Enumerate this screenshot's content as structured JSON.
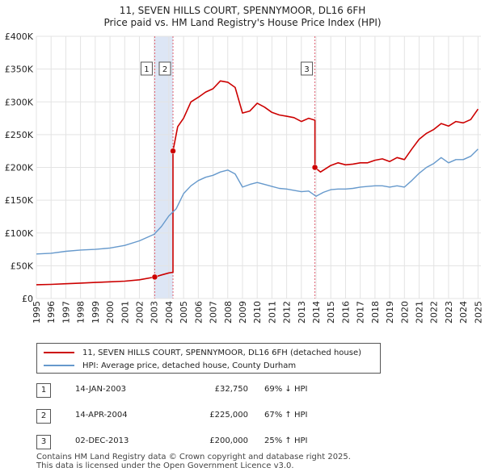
{
  "header": {
    "title_line1": "11, SEVEN HILLS COURT, SPENNYMOOR, DL16 6FH",
    "title_line2": "Price paid vs. HM Land Registry's House Price Index (HPI)"
  },
  "colors": {
    "property": "#cc0000",
    "hpi": "#6699cc",
    "highlight": "#dde6f5",
    "vline": "#e06070"
  },
  "chart_data": {
    "type": "line",
    "title": "11, SEVEN HILLS COURT, SPENNYMOOR, DL16 6FH — Price paid vs. HM Land Registry's House Price Index (HPI)",
    "xlim": [
      1995,
      2025.2
    ],
    "ylim": [
      0,
      400000
    ],
    "x_ticks": [
      "1995",
      "1996",
      "1997",
      "1998",
      "1999",
      "2000",
      "2001",
      "2002",
      "2003",
      "2004",
      "2005",
      "2006",
      "2007",
      "2008",
      "2009",
      "2010",
      "2011",
      "2012",
      "2013",
      "2014",
      "2015",
      "2016",
      "2017",
      "2018",
      "2019",
      "2020",
      "2021",
      "2022",
      "2023",
      "2024",
      "2025"
    ],
    "y_ticks": [
      {
        "value": 0,
        "label": "£0"
      },
      {
        "value": 50000,
        "label": "£50K"
      },
      {
        "value": 100000,
        "label": "£100K"
      },
      {
        "value": 150000,
        "label": "£150K"
      },
      {
        "value": 200000,
        "label": "£200K"
      },
      {
        "value": 250000,
        "label": "£250K"
      },
      {
        "value": 300000,
        "label": "£300K"
      },
      {
        "value": 350000,
        "label": "£350K"
      },
      {
        "value": 400000,
        "label": "£400K"
      }
    ],
    "series": [
      {
        "name": "11, SEVEN HILLS COURT, SPENNYMOOR, DL16 6FH (detached house)",
        "color": "#cc0000",
        "points": [
          [
            1995,
            21000
          ],
          [
            1996,
            21500
          ],
          [
            1997,
            22500
          ],
          [
            1998,
            23500
          ],
          [
            1999,
            24500
          ],
          [
            2000,
            25500
          ],
          [
            2001,
            26500
          ],
          [
            2002,
            28500
          ],
          [
            2003.04,
            32750
          ],
          [
            2003.5,
            36000
          ],
          [
            2004.0,
            39000
          ],
          [
            2004.28,
            40000
          ],
          [
            2004.28,
            225000
          ],
          [
            2004.6,
            262000
          ],
          [
            2005,
            275000
          ],
          [
            2005.5,
            300000
          ],
          [
            2006,
            307000
          ],
          [
            2006.5,
            315000
          ],
          [
            2007,
            320000
          ],
          [
            2007.5,
            332000
          ],
          [
            2008,
            330000
          ],
          [
            2008.5,
            322000
          ],
          [
            2009,
            283000
          ],
          [
            2009.5,
            286000
          ],
          [
            2010,
            298000
          ],
          [
            2010.5,
            292000
          ],
          [
            2011,
            284000
          ],
          [
            2011.5,
            280000
          ],
          [
            2012,
            278000
          ],
          [
            2012.5,
            276000
          ],
          [
            2013,
            270000
          ],
          [
            2013.5,
            275000
          ],
          [
            2013.92,
            272000
          ],
          [
            2013.92,
            200000
          ],
          [
            2014.3,
            193000
          ],
          [
            2015,
            203000
          ],
          [
            2015.5,
            207000
          ],
          [
            2016,
            204000
          ],
          [
            2016.5,
            205000
          ],
          [
            2017,
            207000
          ],
          [
            2017.5,
            207000
          ],
          [
            2018,
            211000
          ],
          [
            2018.5,
            213000
          ],
          [
            2019,
            209000
          ],
          [
            2019.5,
            215000
          ],
          [
            2020,
            212000
          ],
          [
            2020.5,
            228000
          ],
          [
            2021,
            243000
          ],
          [
            2021.5,
            252000
          ],
          [
            2022,
            258000
          ],
          [
            2022.5,
            267000
          ],
          [
            2023,
            263000
          ],
          [
            2023.5,
            270000
          ],
          [
            2024,
            268000
          ],
          [
            2024.5,
            273000
          ],
          [
            2025,
            289000
          ]
        ]
      },
      {
        "name": "HPI: Average price, detached house, County Durham",
        "color": "#6699cc",
        "points": [
          [
            1995,
            68000
          ],
          [
            1996,
            69000
          ],
          [
            1997,
            72000
          ],
          [
            1998,
            74000
          ],
          [
            1999,
            75000
          ],
          [
            2000,
            77000
          ],
          [
            2001,
            81000
          ],
          [
            2002,
            88000
          ],
          [
            2003,
            98000
          ],
          [
            2003.5,
            110000
          ],
          [
            2004,
            126000
          ],
          [
            2004.5,
            137000
          ],
          [
            2005,
            160000
          ],
          [
            2005.5,
            172000
          ],
          [
            2006,
            180000
          ],
          [
            2006.5,
            185000
          ],
          [
            2007,
            188000
          ],
          [
            2007.5,
            193000
          ],
          [
            2008,
            196000
          ],
          [
            2008.5,
            190000
          ],
          [
            2009,
            170000
          ],
          [
            2009.5,
            174000
          ],
          [
            2010,
            177000
          ],
          [
            2010.5,
            174000
          ],
          [
            2011,
            171000
          ],
          [
            2011.5,
            168000
          ],
          [
            2012,
            167000
          ],
          [
            2012.5,
            165000
          ],
          [
            2013,
            163000
          ],
          [
            2013.5,
            164000
          ],
          [
            2014,
            156000
          ],
          [
            2014.5,
            162000
          ],
          [
            2015,
            166000
          ],
          [
            2015.5,
            167000
          ],
          [
            2016,
            167000
          ],
          [
            2016.5,
            168000
          ],
          [
            2017,
            170000
          ],
          [
            2017.5,
            171000
          ],
          [
            2018,
            172000
          ],
          [
            2018.5,
            172000
          ],
          [
            2019,
            170000
          ],
          [
            2019.5,
            172000
          ],
          [
            2020,
            170000
          ],
          [
            2020.5,
            180000
          ],
          [
            2021,
            191000
          ],
          [
            2021.5,
            200000
          ],
          [
            2022,
            206000
          ],
          [
            2022.5,
            215000
          ],
          [
            2023,
            207000
          ],
          [
            2023.5,
            212000
          ],
          [
            2024,
            212000
          ],
          [
            2024.5,
            217000
          ],
          [
            2025,
            228000
          ]
        ]
      }
    ],
    "sales": [
      {
        "label": "1",
        "x": 2003.04,
        "y": 32750
      },
      {
        "label": "2",
        "x": 2004.28,
        "y": 225000
      },
      {
        "label": "3",
        "x": 2013.92,
        "y": 200000
      }
    ],
    "shaded_range": [
      2003.04,
      2004.28
    ]
  },
  "legend": {
    "property_label": "11, SEVEN HILLS COURT, SPENNYMOOR, DL16 6FH (detached house)",
    "hpi_label": "HPI: Average price, detached house, County Durham"
  },
  "transactions": [
    {
      "num": "1",
      "date": "14-JAN-2003",
      "price": "£32,750",
      "hpi": "69% ↓ HPI"
    },
    {
      "num": "2",
      "date": "14-APR-2004",
      "price": "£225,000",
      "hpi": "67% ↑ HPI"
    },
    {
      "num": "3",
      "date": "02-DEC-2013",
      "price": "£200,000",
      "hpi": "25% ↑ HPI"
    }
  ],
  "footer": {
    "line1": "Contains HM Land Registry data © Crown copyright and database right 2025.",
    "line2": "This data is licensed under the Open Government Licence v3.0."
  }
}
